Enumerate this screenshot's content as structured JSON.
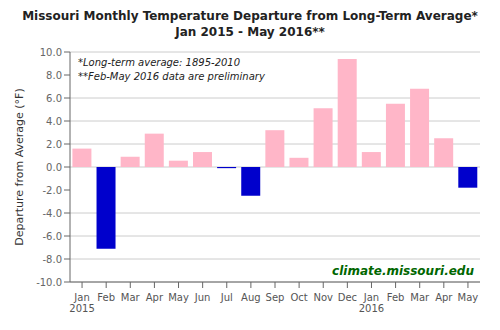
{
  "chart_data": {
    "type": "bar",
    "title": "Missouri Monthly Temperature Departure from Long-Term Average*",
    "subtitle": "Jan 2015 - May 2016**",
    "categories": [
      "Jan\n2015",
      "Feb",
      "Mar",
      "Apr",
      "May",
      "Jun",
      "Jul",
      "Aug",
      "Sep",
      "Oct",
      "Nov",
      "Dec",
      "Jan\n2016",
      "Feb",
      "Mar",
      "Apr",
      "May"
    ],
    "values": [
      1.6,
      -7.1,
      0.9,
      2.9,
      0.55,
      1.3,
      -0.1,
      -2.5,
      3.2,
      0.8,
      5.1,
      9.4,
      1.3,
      5.5,
      6.8,
      2.5,
      -1.8
    ],
    "colors": [
      "#FFB6C8",
      "#0000CC",
      "#FFB6C8",
      "#FFB6C8",
      "#FFB6C8",
      "#FFB6C8",
      "#0000CC",
      "#0000CC",
      "#FFB6C8",
      "#FFB6C8",
      "#FFB6C8",
      "#FFB6C8",
      "#FFB6C8",
      "#FFB6C8",
      "#FFB6C8",
      "#FFB6C8",
      "#0000CC"
    ],
    "ylabel": "Departure from Average (°F)",
    "ylim": [
      -10.0,
      10.0
    ],
    "yticks": [
      {
        "value": -10,
        "label": "-10.0"
      },
      {
        "value": -8,
        "label": "-8.0"
      },
      {
        "value": -6,
        "label": "-6.0"
      },
      {
        "value": -4,
        "label": "-4.0"
      },
      {
        "value": -2,
        "label": "-2.0"
      },
      {
        "value": 0,
        "label": "0.0"
      },
      {
        "value": 2,
        "label": "2.0"
      },
      {
        "value": 4,
        "label": "4.0"
      },
      {
        "value": 6,
        "label": "6.0"
      },
      {
        "value": 8,
        "label": "8.0"
      },
      {
        "value": 10,
        "label": "10.0"
      }
    ],
    "annotations": [
      "*Long-term average: 1895-2010",
      "**Feb-May 2016 data are preliminary"
    ],
    "watermark": "climate.missouri.edu",
    "grid": true
  }
}
